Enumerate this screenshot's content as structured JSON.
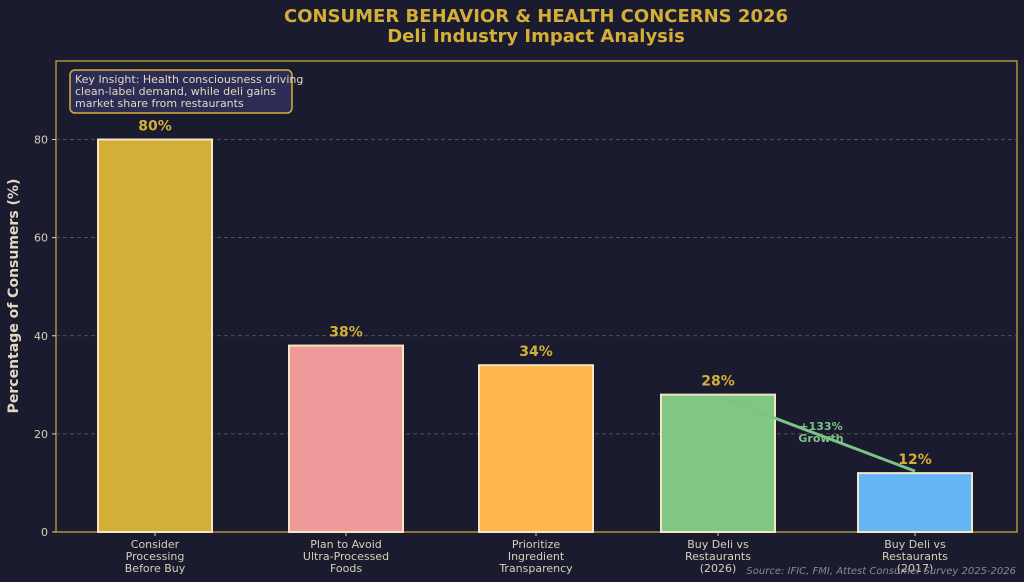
{
  "chart_data": {
    "type": "bar",
    "title": "CONSUMER BEHAVIOR & HEALTH CONCERNS 2026",
    "subtitle": "Deli Industry Impact Analysis",
    "ylabel": "Percentage of Consumers (%)",
    "xlabel": "",
    "ylim": [
      0,
      96
    ],
    "yticks": [
      0,
      20,
      40,
      60,
      80
    ],
    "grid": true,
    "categories": [
      [
        "Consider",
        "Processing",
        "Before Buy"
      ],
      [
        "Plan to Avoid",
        "Ultra-Processed",
        "Foods"
      ],
      [
        "Prioritize",
        "Ingredient",
        "Transparency"
      ],
      [
        "Buy Deli vs",
        "Restaurants",
        "(2026)"
      ],
      [
        "Buy Deli vs",
        "Restaurants",
        "(2017)"
      ]
    ],
    "values": [
      80,
      38,
      34,
      28,
      12
    ],
    "value_labels": [
      "80%",
      "38%",
      "34%",
      "28%",
      "12%"
    ],
    "colors": [
      "#d4af37",
      "#ef9a9a",
      "#ffb74d",
      "#81c784",
      "#64b5f6"
    ],
    "insight": [
      "Key Insight: Health consciousness driving",
      "clean-label demand, while deli gains",
      "market share from restaurants"
    ],
    "growth_annotation": [
      "+133%",
      "Growth"
    ],
    "source": "Source: IFIC, FMI, Attest Consumer Survey 2025-2026"
  }
}
